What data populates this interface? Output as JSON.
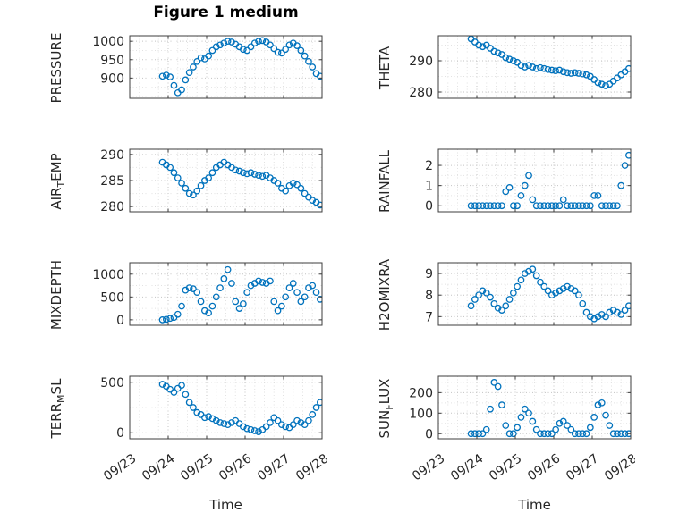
{
  "figure": {
    "title": "Figure 1 medium",
    "xlabel": "Time",
    "xlim": [
      0,
      5
    ],
    "x_unit": "days since 09/23 00:00",
    "x_ticks": {
      "values": [
        0,
        1,
        2,
        3,
        4,
        5
      ],
      "labels": [
        "09/23",
        "09/24",
        "09/25",
        "09/26",
        "09/27",
        "09/28"
      ]
    },
    "marker_color": "#0072BD",
    "grid_color": "#c3c3c3",
    "minor_grid_color": "#e2e2e2",
    "axis_color": "#3c3c3c",
    "text_color": "#262626",
    "grid": "on",
    "marker": "open-circle"
  },
  "chart_data": [
    {
      "name": "PRESSURE",
      "type": "scatter",
      "ylabel": "PRESSURE",
      "ylim": [
        845,
        1015
      ],
      "yticks": [
        900,
        950,
        1000
      ],
      "t_start": 0.85,
      "t_step": 0.1,
      "values": [
        905,
        908,
        903,
        880,
        860,
        868,
        895,
        915,
        930,
        945,
        955,
        952,
        960,
        975,
        985,
        990,
        995,
        1000,
        998,
        992,
        985,
        978,
        975,
        985,
        995,
        1000,
        1002,
        998,
        990,
        980,
        970,
        968,
        978,
        990,
        995,
        988,
        975,
        960,
        945,
        930,
        912,
        905
      ]
    },
    {
      "name": "THETA",
      "type": "scatter",
      "ylabel": "THETA",
      "ylim": [
        278,
        298
      ],
      "yticks": [
        280,
        290
      ],
      "t_start": 0.85,
      "t_step": 0.1,
      "values": [
        297,
        296,
        295,
        294.5,
        295,
        294,
        293,
        292.5,
        292,
        291,
        290.5,
        290,
        289.5,
        288.5,
        288,
        288.5,
        288,
        287.5,
        287.8,
        287.5,
        287.2,
        287,
        286.8,
        287,
        286.5,
        286.2,
        286,
        286.2,
        286,
        285.8,
        285.5,
        285,
        284,
        283,
        282.5,
        282,
        282.5,
        283.5,
        284.5,
        285.5,
        286.5,
        287.5
      ]
    },
    {
      "name": "AIR_TEMP",
      "type": "scatter",
      "ylabel": "AIR_TEMP",
      "ylim": [
        279,
        291
      ],
      "yticks": [
        280,
        285,
        290
      ],
      "t_start": 0.85,
      "t_step": 0.1,
      "values": [
        288.5,
        288,
        287.5,
        286.5,
        285.5,
        284.5,
        283.5,
        282.5,
        282.2,
        283,
        284,
        285,
        285.5,
        286.5,
        287.5,
        288,
        288.5,
        288,
        287.5,
        287,
        286.8,
        286.5,
        286.3,
        286.5,
        286.2,
        286,
        285.8,
        286,
        285.5,
        285,
        284.5,
        283.5,
        283,
        284,
        284.5,
        284.2,
        283.5,
        282.5,
        281.8,
        281.2,
        280.8,
        280.3
      ]
    },
    {
      "name": "RAINFALL",
      "type": "scatter",
      "ylabel": "RAINFALL",
      "ylim": [
        -0.3,
        2.8
      ],
      "yticks": [
        0,
        1,
        2
      ],
      "t_start": 0.85,
      "t_step": 0.1,
      "values": [
        0,
        0,
        0,
        0,
        0,
        0,
        0,
        0,
        0,
        0.7,
        0.9,
        0,
        0,
        0.5,
        1,
        1.5,
        0.3,
        0,
        0,
        0,
        0,
        0,
        0,
        0,
        0.3,
        0,
        0,
        0,
        0,
        0,
        0,
        0,
        0.5,
        0.5,
        0,
        0,
        0,
        0,
        0,
        1,
        2,
        2.5
      ]
    },
    {
      "name": "MIXDEPTH",
      "type": "scatter",
      "ylabel": "MIXDEPTH",
      "ylim": [
        -120,
        1250
      ],
      "yticks": [
        0,
        500,
        1000
      ],
      "t_start": 0.85,
      "t_step": 0.1,
      "values": [
        0,
        10,
        30,
        50,
        120,
        300,
        650,
        700,
        680,
        600,
        400,
        200,
        150,
        300,
        500,
        700,
        900,
        1100,
        800,
        400,
        250,
        350,
        600,
        750,
        800,
        850,
        820,
        800,
        850,
        400,
        200,
        300,
        500,
        700,
        800,
        600,
        400,
        500,
        700,
        750,
        600,
        450
      ]
    },
    {
      "name": "H2OMIXRA",
      "type": "scatter",
      "ylabel": "H2OMIXRA",
      "ylim": [
        6.6,
        9.5
      ],
      "yticks": [
        7,
        8,
        9
      ],
      "t_start": 0.85,
      "t_step": 0.1,
      "values": [
        7.5,
        7.8,
        8,
        8.2,
        8.1,
        7.9,
        7.6,
        7.4,
        7.3,
        7.5,
        7.8,
        8.1,
        8.4,
        8.7,
        9,
        9.1,
        9.2,
        8.9,
        8.6,
        8.4,
        8.2,
        8,
        8.1,
        8.2,
        8.3,
        8.4,
        8.3,
        8.2,
        8,
        7.6,
        7.2,
        7,
        6.9,
        7,
        7.1,
        7,
        7.2,
        7.3,
        7.2,
        7.1,
        7.3,
        7.5
      ]
    },
    {
      "name": "TERR_MSL",
      "type": "scatter",
      "ylabel": "TERR_MSL",
      "ylim": [
        -60,
        560
      ],
      "yticks": [
        0,
        500
      ],
      "t_start": 0.85,
      "t_step": 0.1,
      "values": [
        480,
        460,
        430,
        400,
        440,
        470,
        380,
        300,
        250,
        200,
        180,
        150,
        160,
        140,
        120,
        100,
        90,
        80,
        100,
        120,
        90,
        60,
        40,
        30,
        20,
        10,
        30,
        60,
        100,
        150,
        120,
        80,
        60,
        50,
        80,
        120,
        100,
        80,
        120,
        180,
        250,
        300
      ]
    },
    {
      "name": "SUN_FLUX",
      "type": "scatter",
      "ylabel": "SUN_FLUX",
      "ylim": [
        -25,
        280
      ],
      "yticks": [
        0,
        100,
        200
      ],
      "t_start": 0.85,
      "t_step": 0.1,
      "values": [
        0,
        0,
        0,
        0,
        20,
        120,
        250,
        230,
        140,
        40,
        0,
        0,
        30,
        80,
        120,
        100,
        60,
        20,
        0,
        0,
        0,
        0,
        20,
        50,
        60,
        40,
        20,
        0,
        0,
        0,
        0,
        30,
        80,
        140,
        150,
        90,
        40,
        0,
        0,
        0,
        0,
        0
      ]
    }
  ]
}
